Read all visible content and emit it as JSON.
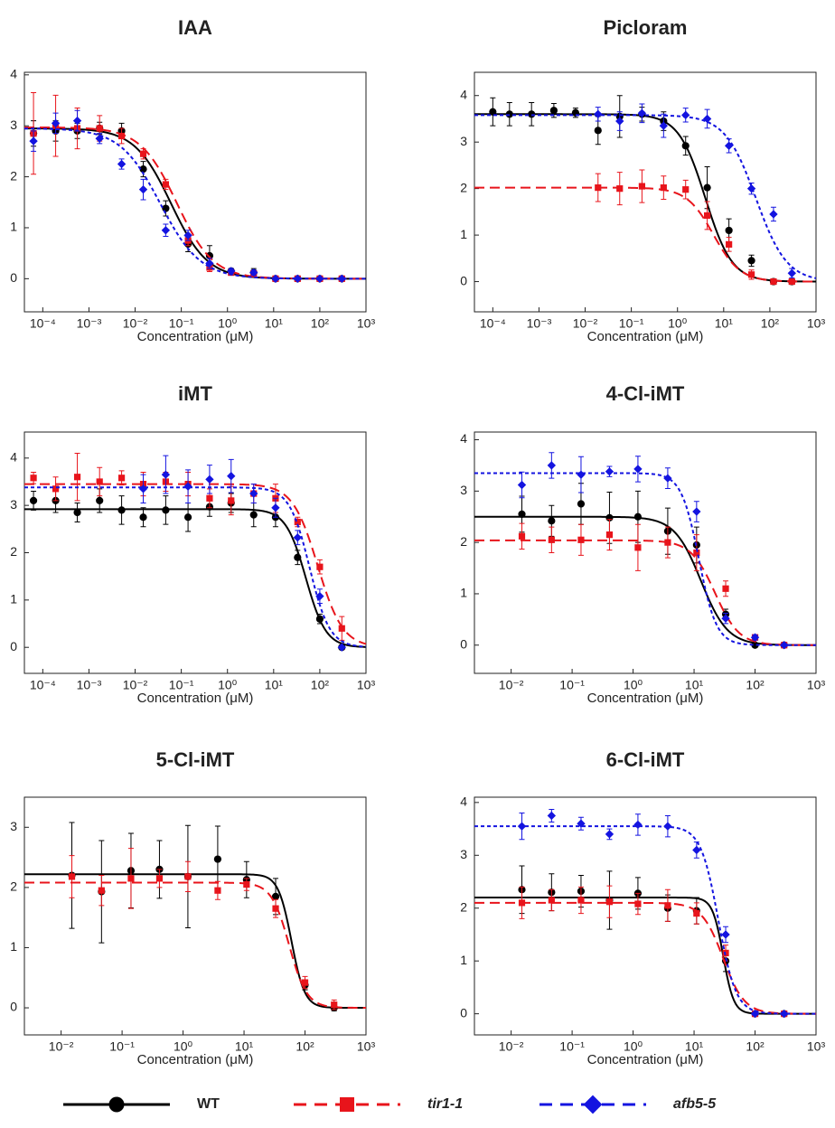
{
  "chart_data": [
    {
      "type": "line",
      "title": "IAA",
      "x_label": "Concentration (μM)",
      "log_x": true,
      "x": [
        6.3e-05,
        0.00019,
        0.00056,
        0.0017,
        0.0051,
        0.015,
        0.046,
        0.14,
        0.41,
        1.2,
        3.7,
        11,
        33,
        100,
        300
      ],
      "xlim": [
        4e-05,
        1000
      ],
      "xticks": [
        {
          "value": 0.0001,
          "label": "10⁻⁴"
        },
        {
          "value": 0.001,
          "label": "10⁻³"
        },
        {
          "value": 0.01,
          "label": "10⁻²"
        },
        {
          "value": 0.1,
          "label": "10⁻¹"
        },
        {
          "value": 1,
          "label": "10⁰"
        },
        {
          "value": 10,
          "label": "10¹"
        },
        {
          "value": 100,
          "label": "10²"
        },
        {
          "value": 1000,
          "label": "10³"
        }
      ],
      "ylim": [
        -0.65,
        4.05
      ],
      "yticks": [
        0,
        1,
        2,
        3,
        4
      ],
      "series": [
        {
          "name": "WT",
          "color": "#000000",
          "marker": "circle",
          "dash": "solid",
          "values": [
            2.85,
            2.9,
            2.9,
            2.95,
            2.9,
            2.15,
            1.38,
            0.68,
            0.45,
            0.15,
            0.12,
            0,
            0,
            0,
            0
          ],
          "errors": [
            0.25,
            0.2,
            0.15,
            0.12,
            0.15,
            0.15,
            0.15,
            0.15,
            0.2,
            0.05,
            0.08,
            0.03,
            0.03,
            0.02,
            0.02
          ],
          "fit": {
            "top": 2.95,
            "bottom": 0,
            "ec50": 0.06,
            "hill": 1.1
          }
        },
        {
          "name": "tir1-1",
          "color": "#e8141b",
          "marker": "square",
          "dash": "dashed",
          "values": [
            2.85,
            3.0,
            2.95,
            2.95,
            2.8,
            2.45,
            1.85,
            0.75,
            0.22,
            0.12,
            0.1,
            0,
            0,
            0,
            0
          ],
          "errors": [
            0.8,
            0.6,
            0.4,
            0.25,
            0.15,
            0.1,
            0.1,
            0.1,
            0.08,
            0.05,
            0.05,
            0.02,
            0.02,
            0.02,
            0.02
          ],
          "fit": {
            "top": 2.97,
            "bottom": 0,
            "ec50": 0.08,
            "hill": 1.1
          }
        },
        {
          "name": "afb5-5",
          "color": "#1414e0",
          "marker": "diamond",
          "dash": "dotted",
          "values": [
            2.7,
            3.05,
            3.1,
            2.75,
            2.25,
            1.75,
            0.95,
            0.85,
            0.3,
            0.15,
            0.12,
            0,
            0,
            0,
            0
          ],
          "errors": [
            0.2,
            0.2,
            0.2,
            0.1,
            0.1,
            0.2,
            0.12,
            0.1,
            0.1,
            0.05,
            0.05,
            0.02,
            0.02,
            0.02,
            0.02
          ],
          "fit": {
            "top": 2.95,
            "bottom": 0,
            "ec50": 0.035,
            "hill": 1.0
          }
        }
      ]
    },
    {
      "type": "line",
      "title": "Picloram",
      "x_label": "Concentration (μM)",
      "log_x": true,
      "x": [
        0.0001,
        0.00023,
        0.00069,
        0.0021,
        0.0062,
        0.019,
        0.056,
        0.17,
        0.5,
        1.5,
        4.4,
        13,
        40,
        120,
        300
      ],
      "xlim": [
        4e-05,
        1000
      ],
      "xticks": [
        {
          "value": 0.0001,
          "label": "10⁻⁴"
        },
        {
          "value": 0.001,
          "label": "10⁻³"
        },
        {
          "value": 0.01,
          "label": "10⁻²"
        },
        {
          "value": 0.1,
          "label": "10⁻¹"
        },
        {
          "value": 1,
          "label": "10⁰"
        },
        {
          "value": 10,
          "label": "10¹"
        },
        {
          "value": 100,
          "label": "10²"
        },
        {
          "value": 1000,
          "label": "10³"
        }
      ],
      "ylim": [
        -0.65,
        4.5
      ],
      "yticks": [
        0,
        1,
        2,
        3,
        4
      ],
      "series": [
        {
          "name": "WT",
          "color": "#000000",
          "marker": "circle",
          "dash": "solid",
          "values": [
            3.65,
            3.6,
            3.6,
            3.68,
            3.63,
            3.25,
            3.55,
            3.6,
            3.45,
            2.92,
            2.02,
            1.1,
            0.45,
            0,
            0
          ],
          "errors": [
            0.3,
            0.25,
            0.25,
            0.15,
            0.1,
            0.3,
            0.45,
            0.15,
            0.2,
            0.2,
            0.45,
            0.25,
            0.12,
            0.03,
            0.03
          ],
          "fit": {
            "top": 3.6,
            "bottom": 0,
            "ec50": 4,
            "hill": 1.5
          }
        },
        {
          "name": "tir1-1",
          "color": "#e8141b",
          "marker": "square",
          "dash": "dashed",
          "values": [
            null,
            null,
            null,
            null,
            null,
            2.02,
            2.0,
            2.05,
            2.02,
            1.98,
            1.42,
            0.8,
            0.15,
            0,
            0
          ],
          "errors": [
            null,
            null,
            null,
            null,
            null,
            0.3,
            0.35,
            0.35,
            0.25,
            0.2,
            0.3,
            0.15,
            0.1,
            0.03,
            0.03
          ],
          "fit": {
            "top": 2.02,
            "bottom": 0,
            "ec50": 6,
            "hill": 1.5
          }
        },
        {
          "name": "afb5-5",
          "color": "#1414e0",
          "marker": "diamond",
          "dash": "dotted",
          "values": [
            null,
            null,
            null,
            null,
            null,
            3.6,
            3.45,
            3.62,
            3.35,
            3.58,
            3.5,
            2.92,
            2.0,
            1.45,
            0.18
          ],
          "errors": [
            null,
            null,
            null,
            null,
            null,
            0.15,
            0.2,
            0.2,
            0.25,
            0.15,
            0.2,
            0.15,
            0.12,
            0.15,
            0.1
          ],
          "fit": {
            "top": 3.58,
            "bottom": 0,
            "ec50": 50,
            "hill": 1.3
          }
        }
      ]
    },
    {
      "type": "line",
      "title": "iMT",
      "x_label": "Concentration (μM)",
      "log_x": true,
      "x": [
        6.3e-05,
        0.00019,
        0.00056,
        0.0017,
        0.0051,
        0.015,
        0.046,
        0.14,
        0.41,
        1.2,
        3.7,
        11,
        33,
        100,
        300
      ],
      "xlim": [
        4e-05,
        1000
      ],
      "xticks": [
        {
          "value": 0.0001,
          "label": "10⁻⁴"
        },
        {
          "value": 0.001,
          "label": "10⁻³"
        },
        {
          "value": 0.01,
          "label": "10⁻²"
        },
        {
          "value": 0.1,
          "label": "10⁻¹"
        },
        {
          "value": 1,
          "label": "10⁰"
        },
        {
          "value": 10,
          "label": "10¹"
        },
        {
          "value": 100,
          "label": "10²"
        },
        {
          "value": 1000,
          "label": "10³"
        }
      ],
      "ylim": [
        -0.55,
        4.55
      ],
      "yticks": [
        0,
        1,
        2,
        3,
        4
      ],
      "series": [
        {
          "name": "WT",
          "color": "#000000",
          "marker": "circle",
          "dash": "solid",
          "values": [
            3.1,
            3.1,
            2.85,
            3.1,
            2.9,
            2.75,
            2.9,
            2.75,
            2.97,
            3.05,
            2.8,
            2.75,
            1.9,
            0.6,
            0
          ],
          "errors": [
            0.2,
            0.25,
            0.2,
            0.25,
            0.3,
            0.2,
            0.3,
            0.3,
            0.2,
            0.2,
            0.25,
            0.2,
            0.15,
            0.1,
            0.03
          ],
          "fit": {
            "top": 2.92,
            "bottom": 0,
            "ec50": 50,
            "hill": 2
          }
        },
        {
          "name": "tir1-1",
          "color": "#e8141b",
          "marker": "square",
          "dash": "dashed",
          "values": [
            3.58,
            3.35,
            3.6,
            3.5,
            3.58,
            3.45,
            3.5,
            3.45,
            3.15,
            3.1,
            3.25,
            3.15,
            2.65,
            1.7,
            0.4
          ],
          "errors": [
            0.12,
            0.25,
            0.5,
            0.3,
            0.15,
            0.25,
            0.2,
            0.25,
            0.2,
            0.3,
            0.2,
            0.3,
            0.1,
            0.15,
            0.25
          ],
          "fit": {
            "top": 3.45,
            "bottom": 0,
            "ec50": 90,
            "hill": 1.6
          }
        },
        {
          "name": "afb5-5",
          "color": "#1414e0",
          "marker": "diamond",
          "dash": "dotted",
          "values": [
            null,
            null,
            null,
            null,
            null,
            3.35,
            3.65,
            3.4,
            3.55,
            3.62,
            3.25,
            2.95,
            2.32,
            1.08,
            0
          ],
          "errors": [
            null,
            null,
            null,
            null,
            null,
            0.3,
            0.4,
            0.35,
            0.3,
            0.35,
            0.2,
            0.2,
            0.15,
            0.15,
            0.03
          ],
          "fit": {
            "top": 3.38,
            "bottom": 0,
            "ec50": 60,
            "hill": 2
          }
        }
      ]
    },
    {
      "type": "line",
      "title": "4-Cl-iMT",
      "x_label": "Concentration (μM)",
      "log_x": true,
      "x": [
        0.015,
        0.046,
        0.14,
        0.41,
        1.2,
        3.7,
        11,
        33,
        100,
        300
      ],
      "xlim": [
        0.0025,
        1000
      ],
      "xticks": [
        {
          "value": 0.01,
          "label": "10⁻²"
        },
        {
          "value": 0.1,
          "label": "10⁻¹"
        },
        {
          "value": 1,
          "label": "10⁰"
        },
        {
          "value": 10,
          "label": "10¹"
        },
        {
          "value": 100,
          "label": "10²"
        },
        {
          "value": 1000,
          "label": "10³"
        }
      ],
      "ylim": [
        -0.55,
        4.15
      ],
      "yticks": [
        0,
        1,
        2,
        3,
        4
      ],
      "series": [
        {
          "name": "WT",
          "color": "#000000",
          "marker": "circle",
          "dash": "solid",
          "values": [
            2.55,
            2.42,
            2.75,
            2.48,
            2.5,
            2.22,
            1.95,
            0.6,
            0,
            0
          ],
          "errors": [
            0.35,
            0.3,
            0.4,
            0.5,
            0.5,
            0.45,
            0.35,
            0.1,
            0.03,
            0.03
          ],
          "fit": {
            "top": 2.5,
            "bottom": 0,
            "ec50": 13,
            "hill": 2
          }
        },
        {
          "name": "tir1-1",
          "color": "#e8141b",
          "marker": "square",
          "dash": "dashed",
          "values": [
            2.12,
            2.05,
            2.05,
            2.15,
            1.9,
            2.0,
            1.8,
            1.1,
            0.15,
            0
          ],
          "errors": [
            0.25,
            0.25,
            0.3,
            0.3,
            0.45,
            0.3,
            0.35,
            0.15,
            0.05,
            0.03
          ],
          "fit": {
            "top": 2.04,
            "bottom": 0,
            "ec50": 22,
            "hill": 2.2
          }
        },
        {
          "name": "afb5-5",
          "color": "#1414e0",
          "marker": "diamond",
          "dash": "dotted",
          "values": [
            3.12,
            3.5,
            3.32,
            3.38,
            3.43,
            3.25,
            2.6,
            0.52,
            0.15,
            0
          ],
          "errors": [
            0.25,
            0.25,
            0.35,
            0.1,
            0.25,
            0.2,
            0.2,
            0.1,
            0.05,
            0.03
          ],
          "fit": {
            "top": 3.35,
            "bottom": 0,
            "ec50": 12,
            "hill": 3
          }
        }
      ]
    },
    {
      "type": "line",
      "title": "5-Cl-iMT",
      "x_label": "Concentration (μM)",
      "log_x": true,
      "x": [
        0.015,
        0.046,
        0.14,
        0.41,
        1.2,
        3.7,
        11,
        33,
        100,
        300
      ],
      "xlim": [
        0.0025,
        1000
      ],
      "xticks": [
        {
          "value": 0.01,
          "label": "10⁻²"
        },
        {
          "value": 0.1,
          "label": "10⁻¹"
        },
        {
          "value": 1,
          "label": "10⁰"
        },
        {
          "value": 10,
          "label": "10¹"
        },
        {
          "value": 100,
          "label": "10²"
        },
        {
          "value": 1000,
          "label": "10³"
        }
      ],
      "ylim": [
        -0.45,
        3.5
      ],
      "yticks": [
        0,
        1,
        2,
        3
      ],
      "series": [
        {
          "name": "WT",
          "color": "#000000",
          "marker": "circle",
          "dash": "solid",
          "values": [
            2.2,
            1.93,
            2.28,
            2.3,
            2.18,
            2.47,
            2.13,
            1.85,
            0.38,
            0
          ],
          "errors": [
            0.88,
            0.85,
            0.62,
            0.48,
            0.85,
            0.55,
            0.3,
            0.3,
            0.08,
            0.05
          ],
          "fit": {
            "top": 2.22,
            "bottom": 0,
            "ec50": 60,
            "hill": 4
          }
        },
        {
          "name": "tir1-1",
          "color": "#e8141b",
          "marker": "square",
          "dash": "dashed",
          "values": [
            2.18,
            1.95,
            2.15,
            2.15,
            2.18,
            1.95,
            2.05,
            1.65,
            0.42,
            0.05
          ],
          "errors": [
            0.35,
            0.25,
            0.5,
            0.15,
            0.25,
            0.15,
            0.1,
            0.15,
            0.1,
            0.08
          ],
          "fit": {
            "top": 2.08,
            "bottom": 0,
            "ec50": 55,
            "hill": 3
          }
        }
      ]
    },
    {
      "type": "line",
      "title": "6-Cl-iMT",
      "x_label": "Concentration (μM)",
      "log_x": true,
      "x": [
        0.015,
        0.046,
        0.14,
        0.41,
        1.2,
        3.7,
        11,
        33,
        100,
        300
      ],
      "xlim": [
        0.0025,
        1000
      ],
      "xticks": [
        {
          "value": 0.01,
          "label": "10⁻²"
        },
        {
          "value": 0.1,
          "label": "10⁻¹"
        },
        {
          "value": 1,
          "label": "10⁰"
        },
        {
          "value": 10,
          "label": "10¹"
        },
        {
          "value": 100,
          "label": "10²"
        },
        {
          "value": 1000,
          "label": "10³"
        }
      ],
      "ylim": [
        -0.4,
        4.1
      ],
      "yticks": [
        0,
        1,
        2,
        3,
        4
      ],
      "series": [
        {
          "name": "WT",
          "color": "#000000",
          "marker": "circle",
          "dash": "solid",
          "values": [
            2.35,
            2.3,
            2.32,
            2.15,
            2.28,
            2.0,
            1.95,
            1.0,
            0,
            0
          ],
          "errors": [
            0.45,
            0.35,
            0.3,
            0.55,
            0.3,
            0.25,
            0.25,
            0.2,
            0.03,
            0.03
          ],
          "fit": {
            "top": 2.2,
            "bottom": 0,
            "ec50": 30,
            "hill": 5
          }
        },
        {
          "name": "tir1-1",
          "color": "#e8141b",
          "marker": "square",
          "dash": "dashed",
          "values": [
            2.1,
            2.15,
            2.15,
            2.12,
            2.08,
            2.05,
            1.9,
            1.15,
            0,
            0
          ],
          "errors": [
            0.3,
            0.2,
            0.25,
            0.3,
            0.2,
            0.3,
            0.2,
            0.15,
            0.03,
            0.03
          ],
          "fit": {
            "top": 2.1,
            "bottom": 0,
            "ec50": 30,
            "hill": 2.5
          }
        },
        {
          "name": "afb5-5",
          "color": "#1414e0",
          "marker": "diamond",
          "dash": "dotted",
          "values": [
            3.55,
            3.75,
            3.6,
            3.4,
            3.58,
            3.55,
            3.1,
            1.5,
            0,
            0
          ],
          "errors": [
            0.25,
            0.12,
            0.12,
            0.1,
            0.2,
            0.2,
            0.15,
            0.15,
            0.03,
            0.03
          ],
          "fit": {
            "top": 3.55,
            "bottom": 0,
            "ec50": 25,
            "hill": 3
          }
        }
      ]
    }
  ]
}
